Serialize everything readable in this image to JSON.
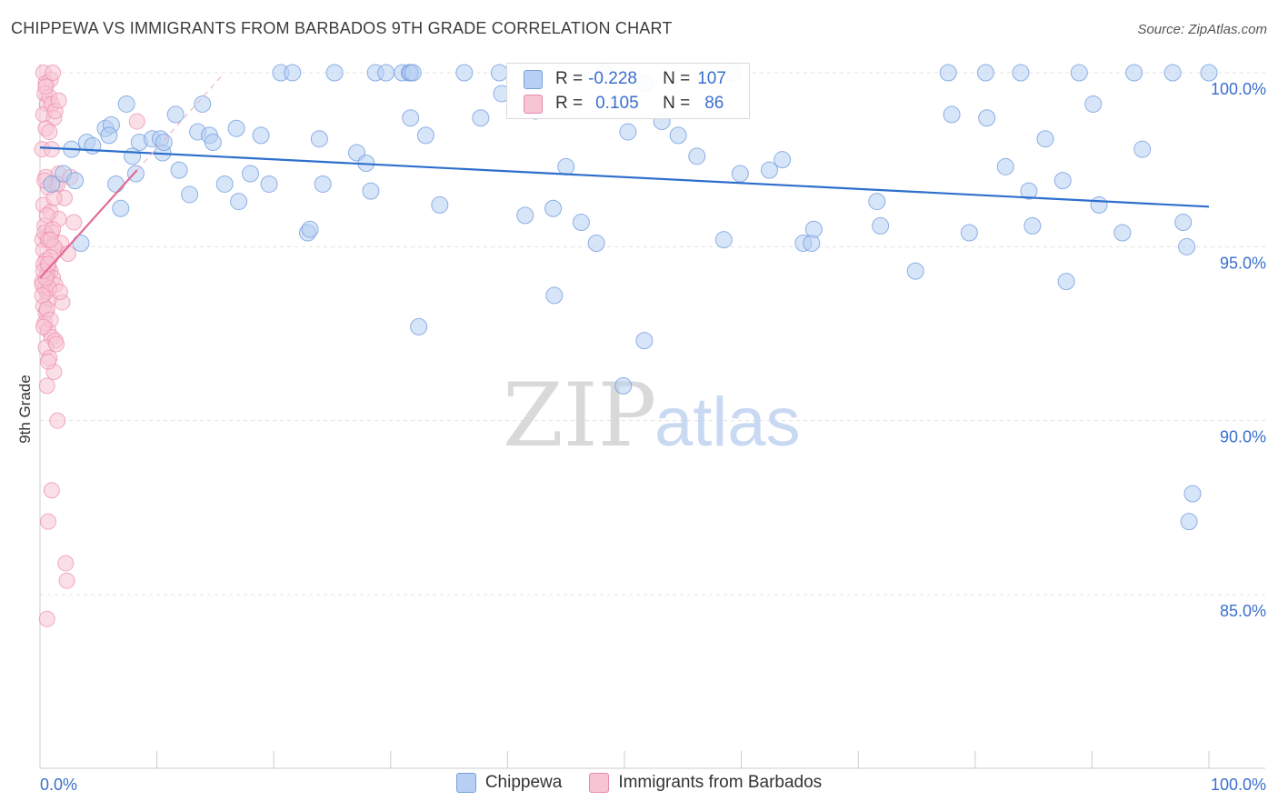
{
  "title": "CHIPPEWA VS IMMIGRANTS FROM BARBADOS 9TH GRADE CORRELATION CHART",
  "source": "Source: ZipAtlas.com",
  "watermark": {
    "zip": "ZIP",
    "atlas": "atlas"
  },
  "stats": [
    {
      "r_label": "R =",
      "r_value": "-0.228",
      "n_label": "N =",
      "n_value": "107",
      "color": "#b7cff3"
    },
    {
      "r_label": "R =",
      "r_value": "0.105",
      "n_label": "N =",
      "n_value": "86",
      "color": "#f7c4d4"
    }
  ],
  "legend": [
    {
      "label": "Chippewa",
      "color": "#b7cff3"
    },
    {
      "label": "Immigrants from Barbados",
      "color": "#f7c4d4"
    }
  ],
  "chart_data": {
    "type": "scatter",
    "ylabel": "9th Grade",
    "xlabel": "",
    "x_tick_labels": [
      "0.0%",
      "100.0%"
    ],
    "y_tick_labels": [
      "100.0%",
      "95.0%",
      "90.0%",
      "85.0%"
    ],
    "y_ticks": [
      100,
      95,
      90,
      85
    ],
    "xlim": [
      0,
      100
    ],
    "ylim": [
      80.5,
      100.7
    ],
    "grid": true,
    "colors": {
      "blue_fill": "#b7cff3",
      "blue_stroke": "#6f98de",
      "blue_line": "#2e6fcc",
      "pink_fill": "#f7c4d4",
      "pink_stroke": "#ec8aa9",
      "pink_line": "#e36b94",
      "tick_label": "#3a6fcf"
    },
    "series": [
      {
        "name": "Chippewa",
        "trend": {
          "x": [
            0,
            100
          ],
          "y": [
            97.85,
            96.15
          ]
        },
        "points": [
          [
            1,
            96.8
          ],
          [
            2,
            97.1
          ],
          [
            3,
            96.9
          ],
          [
            3.5,
            95.1
          ],
          [
            2.7,
            97.8
          ],
          [
            4,
            98
          ],
          [
            4.5,
            97.9
          ],
          [
            5.6,
            98.4
          ],
          [
            6.1,
            98.5
          ],
          [
            5.9,
            98.2
          ],
          [
            7.4,
            99.1
          ],
          [
            6.5,
            96.8
          ],
          [
            6.9,
            96.1
          ],
          [
            8.2,
            97.1
          ],
          [
            8.5,
            98
          ],
          [
            7.9,
            97.6
          ],
          [
            9.6,
            98.1
          ],
          [
            10.3,
            98.1
          ],
          [
            10.5,
            97.7
          ],
          [
            10.6,
            98
          ],
          [
            11.6,
            98.8
          ],
          [
            11.9,
            97.2
          ],
          [
            12.8,
            96.5
          ],
          [
            13.5,
            98.3
          ],
          [
            13.9,
            99.1
          ],
          [
            14.5,
            98.2
          ],
          [
            14.8,
            98
          ],
          [
            15.8,
            96.8
          ],
          [
            16.8,
            98.4
          ],
          [
            17,
            96.3
          ],
          [
            18,
            97.1
          ],
          [
            18.9,
            98.2
          ],
          [
            19.6,
            96.8
          ],
          [
            20.6,
            100
          ],
          [
            21.6,
            100
          ],
          [
            22.9,
            95.4
          ],
          [
            23.1,
            95.5
          ],
          [
            23.9,
            98.1
          ],
          [
            24.2,
            96.8
          ],
          [
            25.2,
            100
          ],
          [
            27.1,
            97.7
          ],
          [
            27.9,
            97.4
          ],
          [
            28.3,
            96.6
          ],
          [
            28.7,
            100
          ],
          [
            29.6,
            100
          ],
          [
            31,
            100
          ],
          [
            31.6,
            100
          ],
          [
            31.7,
            100
          ],
          [
            31.9,
            100
          ],
          [
            31.7,
            98.7
          ],
          [
            32.4,
            92.7
          ],
          [
            33,
            98.2
          ],
          [
            34.2,
            96.2
          ],
          [
            36.3,
            100
          ],
          [
            37.7,
            98.7
          ],
          [
            39.3,
            100
          ],
          [
            39.5,
            99.4
          ],
          [
            41.5,
            95.9
          ],
          [
            42.4,
            98.9
          ],
          [
            44,
            93.6
          ],
          [
            43.9,
            96.1
          ],
          [
            45,
            97.3
          ],
          [
            46.3,
            95.7
          ],
          [
            47.6,
            95.1
          ],
          [
            48.3,
            100
          ],
          [
            49.9,
            91
          ],
          [
            50.3,
            98.3
          ],
          [
            51.7,
            92.3
          ],
          [
            51.8,
            99.7
          ],
          [
            53.2,
            98.6
          ],
          [
            54.6,
            98.2
          ],
          [
            56.2,
            97.6
          ],
          [
            58.5,
            95.2
          ],
          [
            59.3,
            100
          ],
          [
            59.9,
            97.1
          ],
          [
            62.4,
            97.2
          ],
          [
            63.5,
            97.5
          ],
          [
            65.3,
            95.1
          ],
          [
            66,
            95.1
          ],
          [
            66.2,
            95.5
          ],
          [
            71.6,
            96.3
          ],
          [
            71.9,
            95.6
          ],
          [
            74.9,
            94.3
          ],
          [
            77.7,
            100
          ],
          [
            78,
            98.8
          ],
          [
            79.5,
            95.4
          ],
          [
            80.9,
            100
          ],
          [
            81,
            98.7
          ],
          [
            82.6,
            97.3
          ],
          [
            83.9,
            100
          ],
          [
            84.6,
            96.6
          ],
          [
            84.9,
            95.6
          ],
          [
            86,
            98.1
          ],
          [
            87.5,
            96.9
          ],
          [
            87.8,
            94
          ],
          [
            88.9,
            100
          ],
          [
            90.1,
            99.1
          ],
          [
            90.6,
            96.2
          ],
          [
            92.6,
            95.4
          ],
          [
            93.6,
            100
          ],
          [
            94.3,
            97.8
          ],
          [
            96.9,
            100
          ],
          [
            97.8,
            95.7
          ],
          [
            98.1,
            95
          ],
          [
            98.3,
            87.1
          ],
          [
            98.6,
            87.9
          ],
          [
            100,
            100
          ]
        ]
      },
      {
        "name": "Immigrants from Barbados",
        "trend": {
          "x": [
            0,
            8.3
          ],
          "y": [
            94.1,
            97.2
          ]
        },
        "points": [
          [
            0.3,
            100
          ],
          [
            0.5,
            99.7
          ],
          [
            0.4,
            99.4
          ],
          [
            0.6,
            99.1
          ],
          [
            0.3,
            98.8
          ],
          [
            0.8,
            99.3
          ],
          [
            1,
            99.1
          ],
          [
            1.2,
            98.7
          ],
          [
            0.5,
            98.4
          ],
          [
            0.9,
            99.8
          ],
          [
            1.1,
            100
          ],
          [
            0.2,
            97.8
          ],
          [
            0.5,
            97
          ],
          [
            0.7,
            96.7
          ],
          [
            1.3,
            96.8
          ],
          [
            1.6,
            97.1
          ],
          [
            0.3,
            96.2
          ],
          [
            0.4,
            95.6
          ],
          [
            0.6,
            95.3
          ],
          [
            1,
            95.4
          ],
          [
            0.2,
            95.2
          ],
          [
            0.3,
            94.9
          ],
          [
            0.5,
            94.6
          ],
          [
            0.7,
            94.4
          ],
          [
            0.9,
            94.3
          ],
          [
            1.1,
            94.1
          ],
          [
            0.2,
            94
          ],
          [
            0.4,
            93.8
          ],
          [
            0.6,
            93.7
          ],
          [
            0.8,
            93.5
          ],
          [
            0.3,
            93.3
          ],
          [
            0.5,
            93.1
          ],
          [
            0.4,
            92.8
          ],
          [
            0.7,
            92.6
          ],
          [
            1,
            92.4
          ],
          [
            1.3,
            92.3
          ],
          [
            0.5,
            92.1
          ],
          [
            0.8,
            91.8
          ],
          [
            1.2,
            91.4
          ],
          [
            0.6,
            91
          ],
          [
            1.5,
            90
          ],
          [
            1,
            88
          ],
          [
            0.7,
            87.1
          ],
          [
            2.2,
            85.9
          ],
          [
            2.3,
            85.4
          ],
          [
            0.6,
            84.3
          ],
          [
            1.4,
            94.9
          ],
          [
            1.8,
            95.1
          ],
          [
            2.4,
            94.8
          ],
          [
            2.9,
            95.7
          ],
          [
            1.9,
            93.4
          ],
          [
            1.3,
            93.9
          ],
          [
            2.1,
            96.4
          ],
          [
            0.9,
            96
          ],
          [
            1.6,
            95.8
          ],
          [
            0.4,
            95.4
          ],
          [
            0.7,
            95.2
          ],
          [
            1.2,
            95
          ],
          [
            0.3,
            94.5
          ],
          [
            0.6,
            94.2
          ],
          [
            0.9,
            94.7
          ],
          [
            0.2,
            93.9
          ],
          [
            0.8,
            93.8
          ],
          [
            1.5,
            96.8
          ],
          [
            2.6,
            97
          ],
          [
            0.4,
            96.9
          ],
          [
            1.1,
            95.5
          ],
          [
            0.5,
            94.1
          ],
          [
            0.2,
            93.6
          ],
          [
            0.6,
            93.2
          ],
          [
            1.7,
            93.7
          ],
          [
            0.9,
            92.9
          ],
          [
            0.3,
            92.7
          ],
          [
            1.4,
            92.2
          ],
          [
            0.7,
            91.7
          ],
          [
            1.3,
            98.9
          ],
          [
            0.8,
            98.3
          ],
          [
            1.6,
            99.2
          ],
          [
            0.5,
            99.6
          ],
          [
            1,
            97.8
          ],
          [
            0.6,
            95.9
          ],
          [
            0.9,
            95.2
          ],
          [
            0.3,
            94.3
          ],
          [
            0.7,
            94.5
          ],
          [
            8.3,
            98.6
          ],
          [
            1.2,
            96.4
          ]
        ]
      }
    ]
  }
}
